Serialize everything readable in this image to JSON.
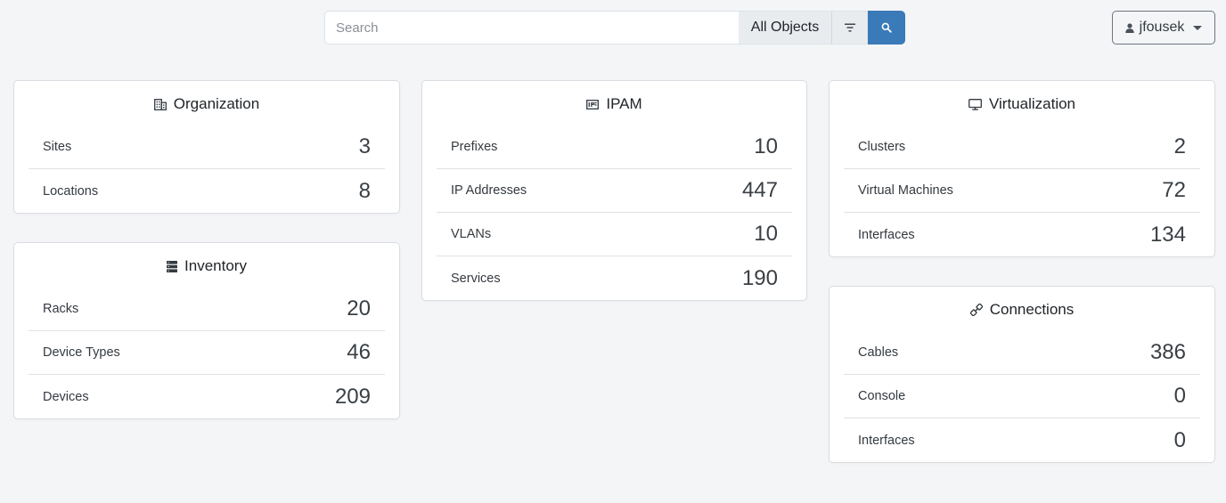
{
  "search": {
    "placeholder": "Search",
    "scope": "All Objects"
  },
  "user": {
    "name": "jfousek"
  },
  "colors": {
    "primary": "#3b7ab8",
    "background": "#f4f5f7"
  },
  "cards": {
    "organization": {
      "title": "Organization",
      "icon": "building-icon",
      "rows": [
        {
          "label": "Sites",
          "count": "3"
        },
        {
          "label": "Locations",
          "count": "8"
        }
      ]
    },
    "inventory": {
      "title": "Inventory",
      "icon": "server-icon",
      "rows": [
        {
          "label": "Racks",
          "count": "20"
        },
        {
          "label": "Device Types",
          "count": "46"
        },
        {
          "label": "Devices",
          "count": "209"
        }
      ]
    },
    "ipam": {
      "title": "IPAM",
      "icon": "ip-card-icon",
      "rows": [
        {
          "label": "Prefixes",
          "count": "10"
        },
        {
          "label": "IP Addresses",
          "count": "447"
        },
        {
          "label": "VLANs",
          "count": "10"
        },
        {
          "label": "Services",
          "count": "190"
        }
      ]
    },
    "virtualization": {
      "title": "Virtualization",
      "icon": "monitor-icon",
      "rows": [
        {
          "label": "Clusters",
          "count": "2"
        },
        {
          "label": "Virtual Machines",
          "count": "72"
        },
        {
          "label": "Interfaces",
          "count": "134"
        }
      ]
    },
    "connections": {
      "title": "Connections",
      "icon": "cable-icon",
      "rows": [
        {
          "label": "Cables",
          "count": "386"
        },
        {
          "label": "Console",
          "count": "0"
        },
        {
          "label": "Interfaces",
          "count": "0"
        }
      ]
    }
  }
}
